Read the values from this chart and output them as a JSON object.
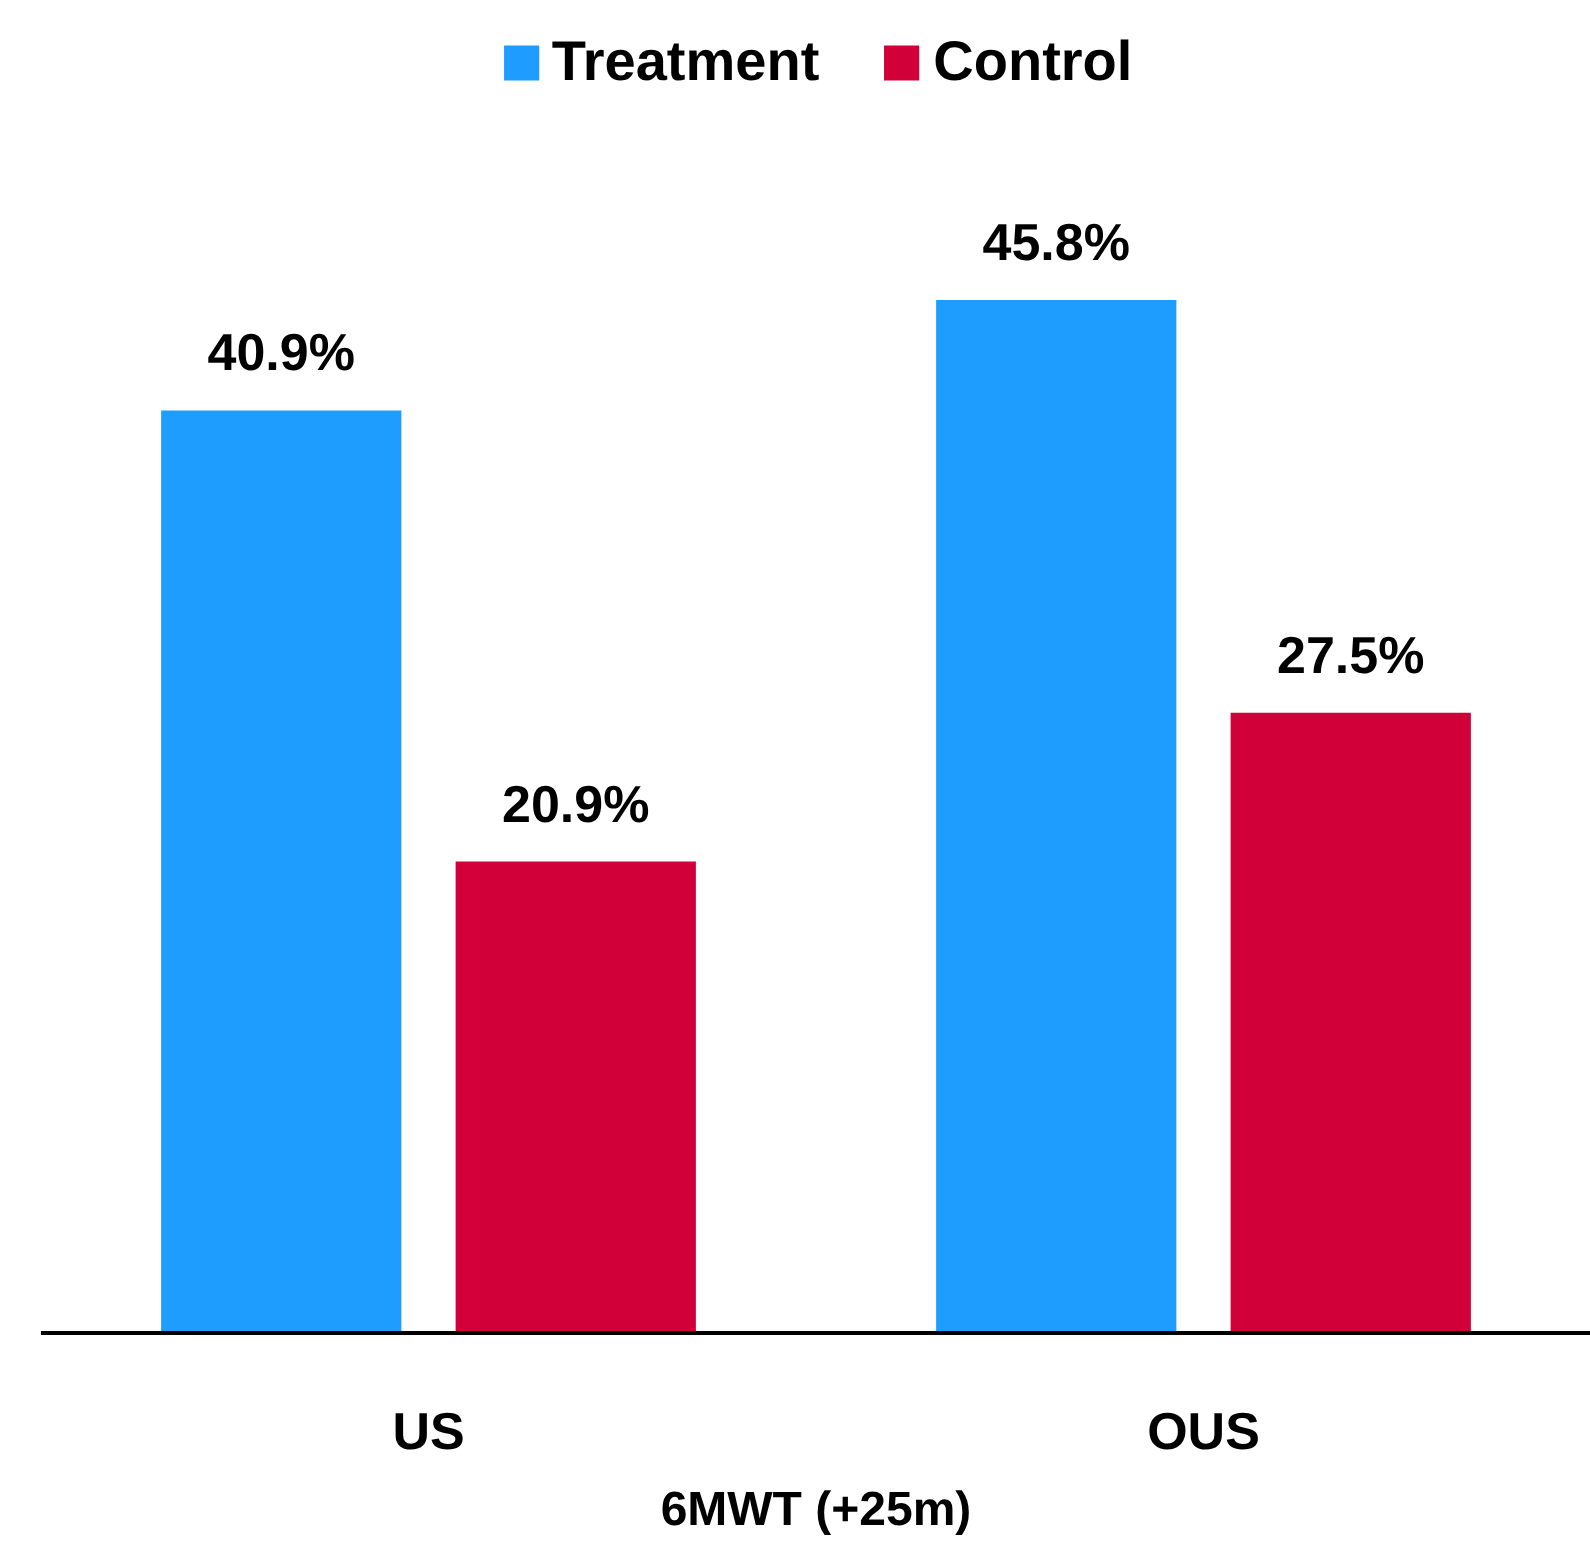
{
  "chart_data": {
    "type": "bar",
    "xlabel": "6MWT (+25m)",
    "categories": [
      "US",
      "OUS"
    ],
    "legend": "top",
    "series": [
      {
        "name": "Treatment",
        "color": "#1f9dff",
        "values": [
          40.9,
          45.8
        ],
        "value_labels": [
          "40.9%",
          "45.8%"
        ]
      },
      {
        "name": "Control",
        "color": "#d10038",
        "values": [
          20.9,
          27.5
        ],
        "value_labels": [
          "20.9%",
          "27.5%"
        ]
      }
    ]
  }
}
